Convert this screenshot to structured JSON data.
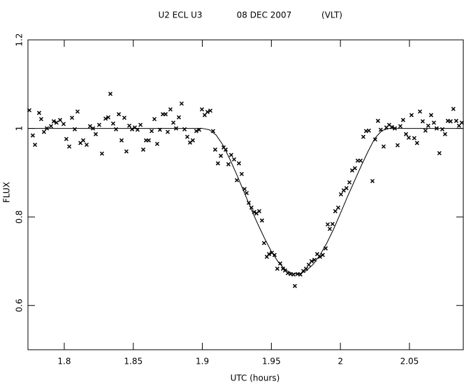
{
  "chart_data": {
    "type": "scatter",
    "title": "U2 ECL U3",
    "date": "08 DEC 2007",
    "telescope": "(VLT)",
    "xlabel": "UTC (hours)",
    "ylabel": "FLUX",
    "xlim": [
      1.7737,
      2.089
    ],
    "ylim": [
      0.5,
      1.2
    ],
    "xticks": [
      1.8,
      1.85,
      1.9,
      1.95,
      2,
      2.05
    ],
    "yticks": [
      0.6,
      0.8,
      1,
      1.2
    ],
    "series": [
      {
        "type": "scatter",
        "color": "#000000",
        "x": [
          1.7747,
          1.7772,
          1.7788,
          1.7818,
          1.7833,
          1.7853,
          1.7874,
          1.7904,
          1.7924,
          1.7944,
          1.797,
          1.7995,
          1.8015,
          1.8036,
          1.8056,
          1.8076,
          1.8096,
          1.8117,
          1.8137,
          1.8162,
          1.8187,
          1.8208,
          1.8228,
          1.8253,
          1.8273,
          1.8299,
          1.8319,
          1.8334,
          1.8354,
          1.8375,
          1.8395,
          1.8415,
          1.8435,
          1.845,
          1.8471,
          1.8491,
          1.8511,
          1.8531,
          1.8552,
          1.8572,
          1.8592,
          1.8612,
          1.8633,
          1.8653,
          1.8673,
          1.8693,
          1.8714,
          1.8734,
          1.8749,
          1.8769,
          1.879,
          1.881,
          1.883,
          1.885,
          1.8871,
          1.8891,
          1.8911,
          1.8931,
          1.8956,
          1.8977,
          1.8997,
          1.9017,
          1.9037,
          1.9058,
          1.9078,
          1.9093,
          1.9113,
          1.9134,
          1.9154,
          1.9169,
          1.9189,
          1.9209,
          1.923,
          1.925,
          1.9265,
          1.9285,
          1.9306,
          1.9321,
          1.9336,
          1.9356,
          1.9376,
          1.9392,
          1.9412,
          1.9432,
          1.9447,
          1.9467,
          1.9483,
          1.9503,
          1.9523,
          1.9543,
          1.9564,
          1.9584,
          1.9599,
          1.9619,
          1.964,
          1.966,
          1.967,
          1.969,
          1.971,
          1.9731,
          1.9751,
          1.9771,
          1.9791,
          1.9812,
          1.9832,
          1.9852,
          1.9872,
          1.9893,
          1.9908,
          1.9923,
          1.9943,
          1.9963,
          1.9984,
          2.0004,
          2.0024,
          2.0044,
          2.0065,
          2.0085,
          2.0105,
          2.0125,
          2.0146,
          2.0166,
          2.0186,
          2.0206,
          2.0232,
          2.0252,
          2.0272,
          2.0292,
          2.0313,
          2.0333,
          2.0353,
          2.0373,
          2.0394,
          2.0414,
          2.0434,
          2.0454,
          2.0475,
          2.0495,
          2.0515,
          2.0535,
          2.0555,
          2.0576,
          2.0596,
          2.0616,
          2.0636,
          2.0657,
          2.0677,
          2.0697,
          2.0717,
          2.0738,
          2.0758,
          2.0778,
          2.0798,
          2.0818,
          2.0839,
          2.0859,
          2.0879
        ],
        "values": [
          1.041,
          0.984,
          0.963,
          1.035,
          1.021,
          0.992,
          1.0,
          1.005,
          1.016,
          1.013,
          1.019,
          1.01,
          0.976,
          0.959,
          1.024,
          0.998,
          1.038,
          0.967,
          0.973,
          0.963,
          1.005,
          1.0,
          0.987,
          1.008,
          0.943,
          1.022,
          1.025,
          1.078,
          1.011,
          0.998,
          1.032,
          0.973,
          1.024,
          0.948,
          1.006,
          0.998,
          1.002,
          0.997,
          1.008,
          0.952,
          0.973,
          0.973,
          0.994,
          1.021,
          0.965,
          0.997,
          1.032,
          1.032,
          0.992,
          1.043,
          1.013,
          1.0,
          1.025,
          1.056,
          0.998,
          0.981,
          0.968,
          0.973,
          0.994,
          0.997,
          1.043,
          1.03,
          1.037,
          1.04,
          0.994,
          0.952,
          0.921,
          0.938,
          0.957,
          0.952,
          0.919,
          0.94,
          0.93,
          0.883,
          0.921,
          0.897,
          0.863,
          0.854,
          0.832,
          0.821,
          0.811,
          0.808,
          0.813,
          0.792,
          0.741,
          0.71,
          0.716,
          0.719,
          0.714,
          0.683,
          0.695,
          0.683,
          0.679,
          0.673,
          0.671,
          0.67,
          0.644,
          0.671,
          0.67,
          0.678,
          0.683,
          0.692,
          0.7,
          0.703,
          0.716,
          0.71,
          0.714,
          0.729,
          0.783,
          0.773,
          0.784,
          0.813,
          0.821,
          0.851,
          0.86,
          0.865,
          0.878,
          0.905,
          0.91,
          0.927,
          0.927,
          0.981,
          0.994,
          0.995,
          0.881,
          0.975,
          1.017,
          0.997,
          0.959,
          1.002,
          1.008,
          1.003,
          1.0,
          0.962,
          1.005,
          1.019,
          0.987,
          0.979,
          1.03,
          0.978,
          0.967,
          1.038,
          1.016,
          0.995,
          1.006,
          1.03,
          1.013,
          1.0,
          0.944,
          0.998,
          0.987,
          1.017,
          1.016,
          1.044,
          1.017,
          1.006,
          1.013
        ]
      },
      {
        "type": "line",
        "color": "#000000",
        "x": [
          1.7737,
          1.9,
          1.905,
          1.91,
          1.915,
          1.92,
          1.925,
          1.93,
          1.935,
          1.94,
          1.945,
          1.95,
          1.955,
          1.96,
          1.965,
          1.97,
          1.975,
          1.98,
          1.985,
          1.99,
          1.995,
          2.0,
          2.005,
          2.01,
          2.015,
          2.02,
          2.025,
          2.03,
          2.035,
          2.089
        ],
        "values": [
          1,
          1,
          0.997,
          0.985,
          0.962,
          0.93,
          0.895,
          0.858,
          0.82,
          0.785,
          0.752,
          0.722,
          0.698,
          0.681,
          0.672,
          0.671,
          0.678,
          0.692,
          0.713,
          0.74,
          0.772,
          0.808,
          0.845,
          0.88,
          0.915,
          0.948,
          0.978,
          0.995,
          1,
          1
        ]
      }
    ]
  }
}
